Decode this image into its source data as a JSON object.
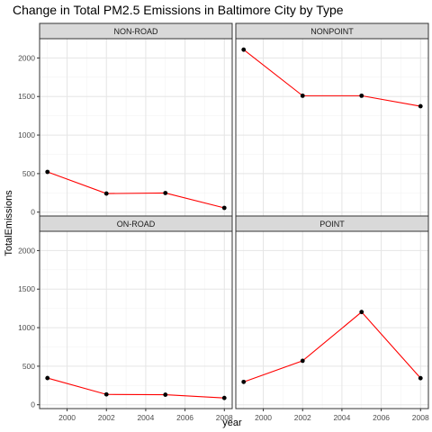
{
  "chart_data": {
    "type": "line",
    "title": "Change in Total PM2.5 Emissions in Baltimore City by Type",
    "xlabel": "year",
    "ylabel": "TotalEmissions",
    "x_ticks": [
      2000,
      2002,
      2004,
      2006,
      2008
    ],
    "y_ticks": [
      0,
      500,
      1000,
      1500,
      2000
    ],
    "xlim": [
      1998.6,
      2008.4
    ],
    "ylim": [
      -50,
      2250
    ],
    "grid": true,
    "line_color": "#ff0000",
    "point_color": "#000000",
    "panel_strip_color": "#d9d9d9",
    "panels": [
      {
        "name": "NON-ROAD",
        "x": [
          1999,
          2002,
          2005,
          2008
        ],
        "y": [
          522,
          241,
          248,
          55
        ]
      },
      {
        "name": "NONPOINT",
        "x": [
          1999,
          2002,
          2005,
          2008
        ],
        "y": [
          2108,
          1510,
          1510,
          1374
        ]
      },
      {
        "name": "ON-ROAD",
        "x": [
          1999,
          2002,
          2005,
          2008
        ],
        "y": [
          346,
          134,
          130,
          88
        ]
      },
      {
        "name": "POINT",
        "x": [
          1999,
          2002,
          2005,
          2008
        ],
        "y": [
          296,
          570,
          1203,
          345
        ]
      }
    ]
  }
}
